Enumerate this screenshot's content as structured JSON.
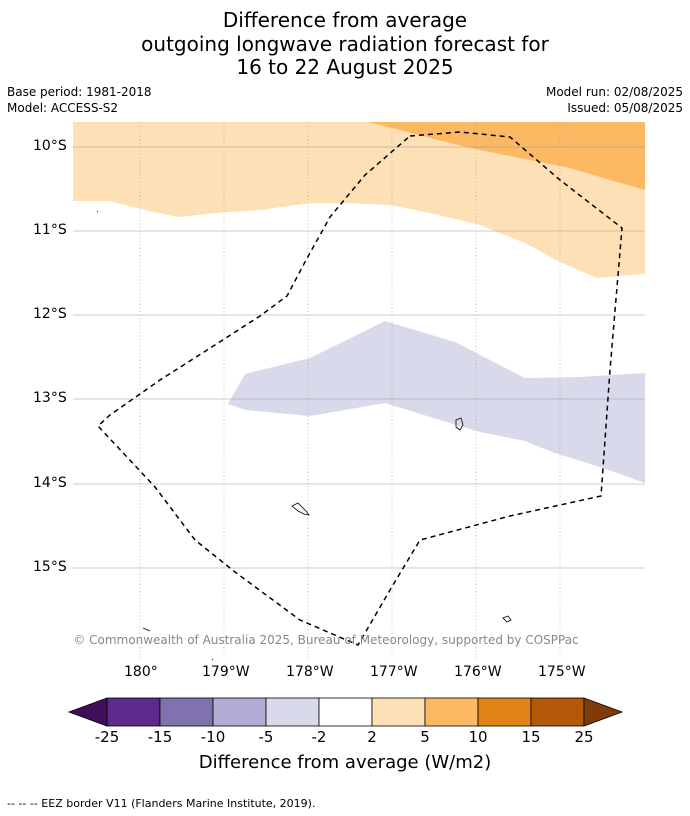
{
  "title": {
    "line1": "Difference from average",
    "line2": "outgoing longwave radiation forecast for",
    "line3": "16 to 22 August 2025"
  },
  "meta": {
    "base_period": "Base period: 1981-2018",
    "model": "Model: ACCESS-S2",
    "model_run": "Model run: 02/08/2025",
    "issued": "Issued: 05/08/2025"
  },
  "map": {
    "lat_labels": [
      "10°S",
      "11°S",
      "12°S",
      "13°S",
      "14°S",
      "15°S"
    ],
    "lon_labels": [
      "180°",
      "179°W",
      "178°W",
      "177°W",
      "176°W",
      "175°W"
    ],
    "copyright": "© Commonwealth of Australia 2025, Bureau of Meteorology, supported by COSPPac",
    "colors": {
      "band_light_orange": "#fde0b6",
      "band_orange": "#fdb863",
      "band_light_purple": "#d8d9ea",
      "gridline": "#999999",
      "coast": "#000000"
    }
  },
  "colorbar": {
    "ticks": [
      "-25",
      "-15",
      "-10",
      "-5",
      "-2",
      "2",
      "5",
      "10",
      "15",
      "25"
    ],
    "colors": [
      "#3f0f5c",
      "#5b2a8a",
      "#8172af",
      "#b2abd3",
      "#d8d9ea",
      "#ffffff",
      "#fde0b6",
      "#fdb863",
      "#e08214",
      "#b35806",
      "#7f3b08"
    ],
    "title": "Difference from average (W/m2)"
  },
  "footnote": "--  --  -- EEZ border V11 (Flanders Marine Institute, 2019)."
}
